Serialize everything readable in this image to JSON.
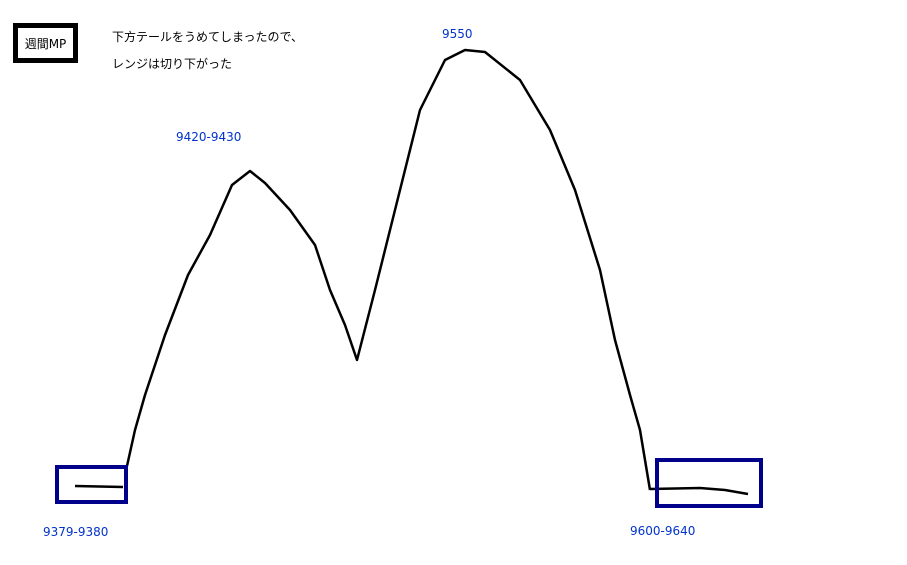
{
  "title": "週間MP",
  "notes": [
    "下方テールをうめてしまったので、",
    "レンジは切り下がった"
  ],
  "labels": {
    "left_low": "9379-9380",
    "first_peak": "9420-9430",
    "second_peak": "9550",
    "right_low": "9600-9640"
  },
  "colors": {
    "curve": "#000000",
    "highlight_box": "#00008b",
    "label": "#0033cc"
  }
}
